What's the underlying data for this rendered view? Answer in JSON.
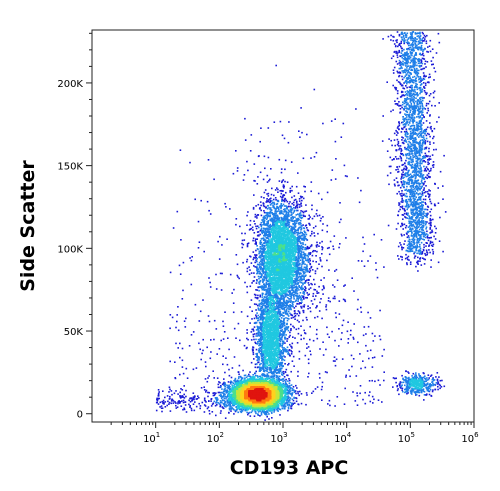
{
  "chart_data": {
    "type": "scatter",
    "xlabel": "CD193 APC",
    "ylabel": "Side Scatter",
    "x_scale": "log",
    "xlim": [
      0,
      6
    ],
    "ylim": [
      -5000,
      232000
    ],
    "x_ticks": [
      {
        "base": "10",
        "exp": "1",
        "value": 1
      },
      {
        "base": "10",
        "exp": "2",
        "value": 2
      },
      {
        "base": "10",
        "exp": "3",
        "value": 3
      },
      {
        "base": "10",
        "exp": "4",
        "value": 4
      },
      {
        "base": "10",
        "exp": "5",
        "value": 5
      },
      {
        "base": "10",
        "exp": "6",
        "value": 6
      }
    ],
    "y_ticks": [
      {
        "label": "0",
        "value": 0
      },
      {
        "label": "50K",
        "value": 50000
      },
      {
        "label": "100K",
        "value": 100000
      },
      {
        "label": "150K",
        "value": 150000
      },
      {
        "label": "200K",
        "value": 200000
      }
    ],
    "density_colormap": [
      "#1b1bd6",
      "#1f7fe8",
      "#20c8e0",
      "#4be08c",
      "#c8e63a",
      "#ffd21e",
      "#ff7a10",
      "#e0140f"
    ],
    "populations": [
      {
        "x_log": 2.6,
        "y": 12000,
        "count": 6500
      },
      {
        "x_log": 2.85,
        "y": 95000,
        "count": 4200
      },
      {
        "x_log": 2.8,
        "y": 45000,
        "count": 1800
      },
      {
        "x_log": 5.05,
        "y": 165000,
        "count": 2400
      },
      {
        "x_log": 5.1,
        "y": 18000,
        "count": 420
      }
    ]
  }
}
